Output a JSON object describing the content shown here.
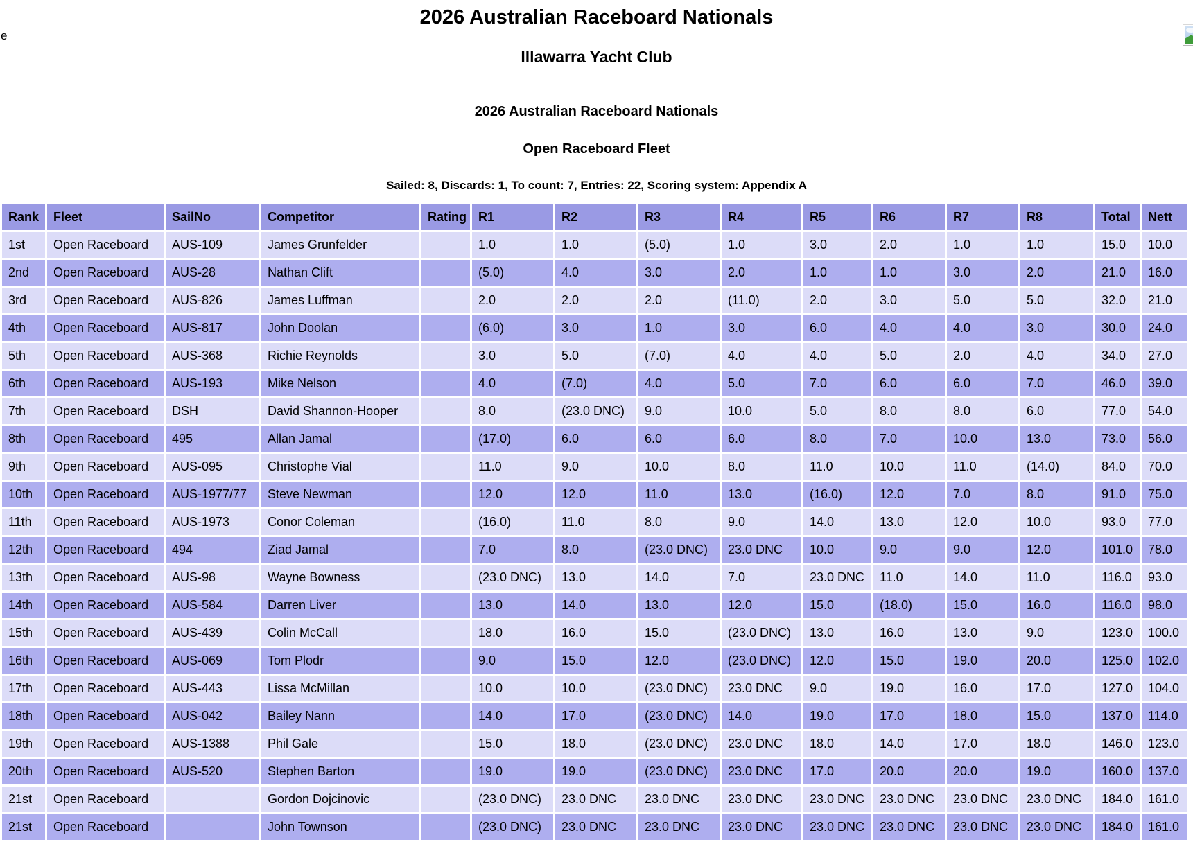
{
  "page": {
    "stray_text": "e",
    "title": "2026 Australian Raceboard Nationals",
    "venue": "Illawarra Yacht Club",
    "series_title": "2026 Australian Raceboard Nationals",
    "fleet_title": "Open Raceboard Fleet",
    "summary": "Sailed: 8, Discards: 1, To count: 7, Entries: 22, Scoring system: Appendix A"
  },
  "icons": {
    "top_right": "broken-image-icon"
  },
  "colors": {
    "header_bg": "#9a9ae4",
    "row_light_bg": "#dcdcf8",
    "row_dark_bg": "#aeaeef",
    "page_bg": "#ffffff",
    "text": "#000000"
  },
  "results_table": {
    "columns": [
      "Rank",
      "Fleet",
      "SailNo",
      "Competitor",
      "Rating",
      "R1",
      "R2",
      "R3",
      "R4",
      "R5",
      "R6",
      "R7",
      "R8",
      "Total",
      "Nett"
    ],
    "rows": [
      [
        "1st",
        "Open Raceboard",
        "AUS-109",
        "James Grunfelder",
        "",
        "1.0",
        "1.0",
        "(5.0)",
        "1.0",
        "3.0",
        "2.0",
        "1.0",
        "1.0",
        "15.0",
        "10.0"
      ],
      [
        "2nd",
        "Open Raceboard",
        "AUS-28",
        "Nathan Clift",
        "",
        "(5.0)",
        "4.0",
        "3.0",
        "2.0",
        "1.0",
        "1.0",
        "3.0",
        "2.0",
        "21.0",
        "16.0"
      ],
      [
        "3rd",
        "Open Raceboard",
        "AUS-826",
        "James Luffman",
        "",
        "2.0",
        "2.0",
        "2.0",
        "(11.0)",
        "2.0",
        "3.0",
        "5.0",
        "5.0",
        "32.0",
        "21.0"
      ],
      [
        "4th",
        "Open Raceboard",
        "AUS-817",
        "John Doolan",
        "",
        "(6.0)",
        "3.0",
        "1.0",
        "3.0",
        "6.0",
        "4.0",
        "4.0",
        "3.0",
        "30.0",
        "24.0"
      ],
      [
        "5th",
        "Open Raceboard",
        "AUS-368",
        "Richie Reynolds",
        "",
        "3.0",
        "5.0",
        "(7.0)",
        "4.0",
        "4.0",
        "5.0",
        "2.0",
        "4.0",
        "34.0",
        "27.0"
      ],
      [
        "6th",
        "Open Raceboard",
        "AUS-193",
        "Mike Nelson",
        "",
        "4.0",
        "(7.0)",
        "4.0",
        "5.0",
        "7.0",
        "6.0",
        "6.0",
        "7.0",
        "46.0",
        "39.0"
      ],
      [
        "7th",
        "Open Raceboard",
        "DSH",
        "David Shannon-Hooper",
        "",
        "8.0",
        "(23.0 DNC)",
        "9.0",
        "10.0",
        "5.0",
        "8.0",
        "8.0",
        "6.0",
        "77.0",
        "54.0"
      ],
      [
        "8th",
        "Open Raceboard",
        "495",
        "Allan Jamal",
        "",
        "(17.0)",
        "6.0",
        "6.0",
        "6.0",
        "8.0",
        "7.0",
        "10.0",
        "13.0",
        "73.0",
        "56.0"
      ],
      [
        "9th",
        "Open Raceboard",
        "AUS-095",
        "Christophe Vial",
        "",
        "11.0",
        "9.0",
        "10.0",
        "8.0",
        "11.0",
        "10.0",
        "11.0",
        "(14.0)",
        "84.0",
        "70.0"
      ],
      [
        "10th",
        "Open Raceboard",
        "AUS-1977/77",
        "Steve Newman",
        "",
        "12.0",
        "12.0",
        "11.0",
        "13.0",
        "(16.0)",
        "12.0",
        "7.0",
        "8.0",
        "91.0",
        "75.0"
      ],
      [
        "11th",
        "Open Raceboard",
        "AUS-1973",
        "Conor Coleman",
        "",
        "(16.0)",
        "11.0",
        "8.0",
        "9.0",
        "14.0",
        "13.0",
        "12.0",
        "10.0",
        "93.0",
        "77.0"
      ],
      [
        "12th",
        "Open Raceboard",
        "494",
        "Ziad Jamal",
        "",
        "7.0",
        "8.0",
        "(23.0 DNC)",
        "23.0 DNC",
        "10.0",
        "9.0",
        "9.0",
        "12.0",
        "101.0",
        "78.0"
      ],
      [
        "13th",
        "Open Raceboard",
        "AUS-98",
        "Wayne Bowness",
        "",
        "(23.0 DNC)",
        "13.0",
        "14.0",
        "7.0",
        "23.0 DNC",
        "11.0",
        "14.0",
        "11.0",
        "116.0",
        "93.0"
      ],
      [
        "14th",
        "Open Raceboard",
        "AUS-584",
        "Darren Liver",
        "",
        "13.0",
        "14.0",
        "13.0",
        "12.0",
        "15.0",
        "(18.0)",
        "15.0",
        "16.0",
        "116.0",
        "98.0"
      ],
      [
        "15th",
        "Open Raceboard",
        "AUS-439",
        "Colin McCall",
        "",
        "18.0",
        "16.0",
        "15.0",
        "(23.0 DNC)",
        "13.0",
        "16.0",
        "13.0",
        "9.0",
        "123.0",
        "100.0"
      ],
      [
        "16th",
        "Open Raceboard",
        "AUS-069",
        "Tom Plodr",
        "",
        "9.0",
        "15.0",
        "12.0",
        "(23.0 DNC)",
        "12.0",
        "15.0",
        "19.0",
        "20.0",
        "125.0",
        "102.0"
      ],
      [
        "17th",
        "Open Raceboard",
        "AUS-443",
        "Lissa McMillan",
        "",
        "10.0",
        "10.0",
        "(23.0 DNC)",
        "23.0 DNC",
        "9.0",
        "19.0",
        "16.0",
        "17.0",
        "127.0",
        "104.0"
      ],
      [
        "18th",
        "Open Raceboard",
        "AUS-042",
        "Bailey Nann",
        "",
        "14.0",
        "17.0",
        "(23.0 DNC)",
        "14.0",
        "19.0",
        "17.0",
        "18.0",
        "15.0",
        "137.0",
        "114.0"
      ],
      [
        "19th",
        "Open Raceboard",
        "AUS-1388",
        "Phil Gale",
        "",
        "15.0",
        "18.0",
        "(23.0 DNC)",
        "23.0 DNC",
        "18.0",
        "14.0",
        "17.0",
        "18.0",
        "146.0",
        "123.0"
      ],
      [
        "20th",
        "Open Raceboard",
        "AUS-520",
        "Stephen Barton",
        "",
        "19.0",
        "19.0",
        "(23.0 DNC)",
        "23.0 DNC",
        "17.0",
        "20.0",
        "20.0",
        "19.0",
        "160.0",
        "137.0"
      ],
      [
        "21st",
        "Open Raceboard",
        "",
        "Gordon Dojcinovic",
        "",
        "(23.0 DNC)",
        "23.0 DNC",
        "23.0 DNC",
        "23.0 DNC",
        "23.0 DNC",
        "23.0 DNC",
        "23.0 DNC",
        "23.0 DNC",
        "184.0",
        "161.0"
      ],
      [
        "21st",
        "Open Raceboard",
        "",
        "John Townson",
        "",
        "(23.0 DNC)",
        "23.0 DNC",
        "23.0 DNC",
        "23.0 DNC",
        "23.0 DNC",
        "23.0 DNC",
        "23.0 DNC",
        "23.0 DNC",
        "184.0",
        "161.0"
      ]
    ]
  }
}
